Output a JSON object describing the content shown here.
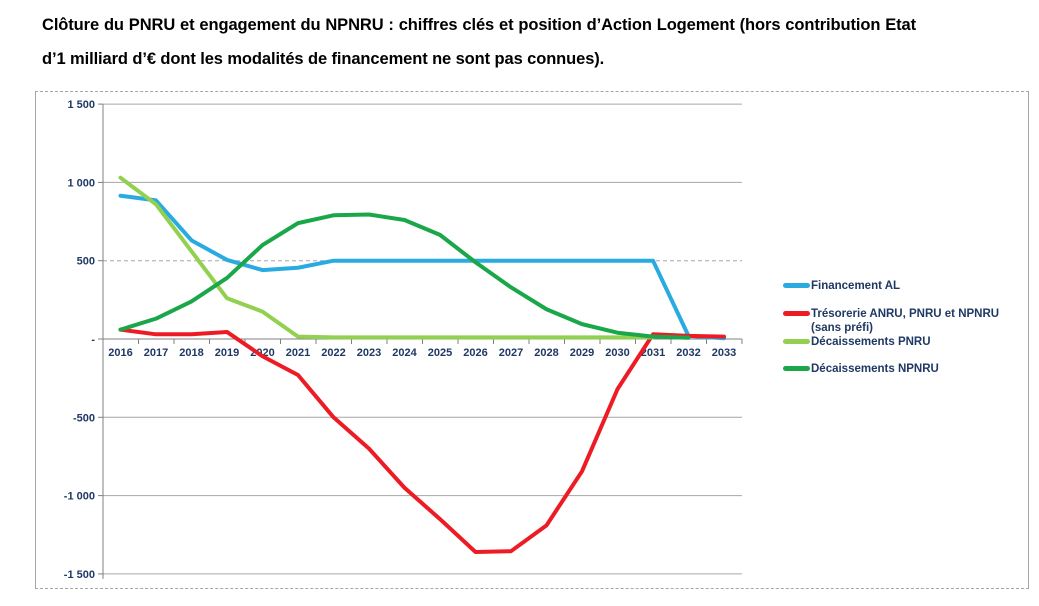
{
  "title": "Clôture du PNRU et engagement du NPNRU : chiffres clés et position d’Action Logement (hors contribution Etat d’1 milliard d’€ dont les modalités de financement ne sont pas connues).",
  "chart_data": {
    "type": "line",
    "title": "",
    "xlabel": "",
    "ylabel": "",
    "x": [
      2016,
      2017,
      2018,
      2019,
      2020,
      2021,
      2022,
      2023,
      2024,
      2025,
      2026,
      2027,
      2028,
      2029,
      2030,
      2031,
      2032,
      2033
    ],
    "ylim": [
      -1500,
      1500
    ],
    "grid": true,
    "legend_position": "right",
    "yticks": [
      {
        "label": "1 500",
        "value": 1500
      },
      {
        "label": "1 000",
        "value": 1000
      },
      {
        "label": "500",
        "value": 500
      },
      {
        "label": "-",
        "value": 0
      },
      {
        "label": "-500",
        "value": -500
      },
      {
        "label": "-1 000",
        "value": -1000
      },
      {
        "label": "-1 500",
        "value": -1500
      }
    ],
    "series": [
      {
        "key": "financement-al",
        "name": "Financement AL",
        "legend_lines": [
          "Financement AL"
        ],
        "color": "#29ABE2",
        "values": [
          915,
          885,
          630,
          505,
          440,
          455,
          500,
          500,
          500,
          500,
          500,
          500,
          500,
          500,
          500,
          500,
          20,
          5
        ]
      },
      {
        "key": "tresorerie-anru-pnru-npnru",
        "name": "Trésorerie ANRU, PNRU et NPNRU (sans préfi)",
        "legend_lines": [
          "Trésorerie ANRU, PNRU et NPNRU",
          "(sans préfi)"
        ],
        "color": "#ED1C24",
        "values": [
          60,
          30,
          30,
          45,
          -110,
          -230,
          -500,
          -700,
          -950,
          -1150,
          -1360,
          -1355,
          -1190,
          -845,
          -320,
          30,
          20,
          15
        ]
      },
      {
        "key": "decaissements-pnru",
        "name": "Décaissements PNRU",
        "legend_lines": [
          "Décaissements PNRU"
        ],
        "color": "#92D050",
        "values": [
          1030,
          860,
          560,
          260,
          175,
          15,
          10,
          10,
          10,
          10,
          10,
          10,
          10,
          10,
          10,
          10,
          null,
          null
        ]
      },
      {
        "key": "decaissements-npnru",
        "name": "Décaissements NPNRU",
        "legend_lines": [
          "Décaissements NPNRU"
        ],
        "color": "#1AA74A",
        "values": [
          60,
          130,
          240,
          390,
          600,
          740,
          790,
          795,
          760,
          665,
          490,
          330,
          190,
          95,
          40,
          15,
          8,
          null
        ]
      }
    ]
  }
}
